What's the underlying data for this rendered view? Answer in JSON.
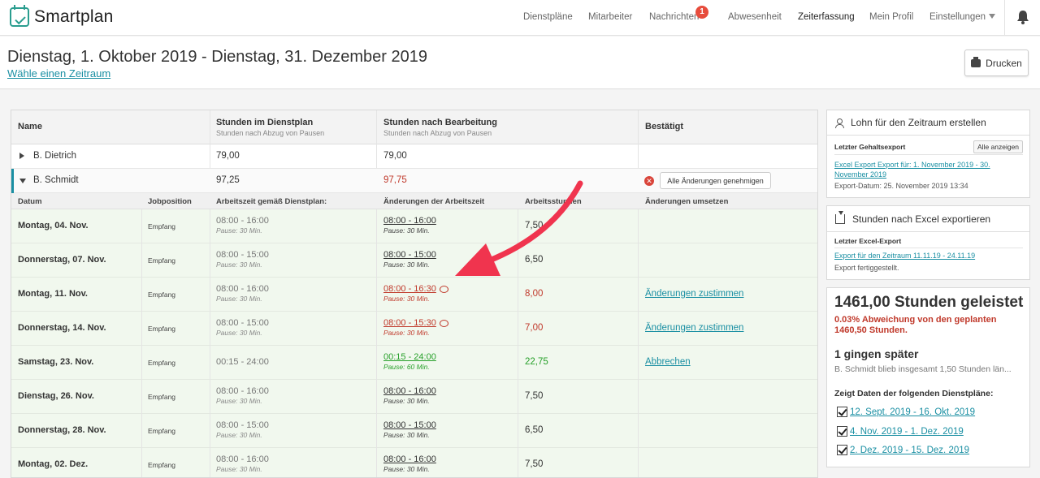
{
  "app": {
    "name": "Smartplan"
  },
  "nav": {
    "items": [
      {
        "label": "Dienstpläne"
      },
      {
        "label": "Mitarbeiter"
      },
      {
        "label": "Nachrichten",
        "badge": "1"
      },
      {
        "label": "Abwesenheit"
      },
      {
        "label": "Zeiterfassung",
        "active": true
      },
      {
        "label": "Mein Profil"
      },
      {
        "label": "Einstellungen"
      }
    ]
  },
  "header": {
    "title": "Dienstag, 1. Oktober 2019 - Dienstag, 31. Dezember 2019",
    "range_link": "Wähle einen Zeitraum",
    "print_label": "Drucken"
  },
  "table": {
    "columns": [
      {
        "label": "Name",
        "sub": ""
      },
      {
        "label": "Stunden im Dienstplan",
        "sub": "Stunden nach Abzug von Pausen"
      },
      {
        "label": "Stunden nach Bearbeitung",
        "sub": "Stunden nach Abzug von Pausen"
      },
      {
        "label": "Bestätigt",
        "sub": ""
      }
    ],
    "employees": [
      {
        "name": "B. Dietrich",
        "planned": "79,00",
        "edited": "79,00"
      },
      {
        "name": "B. Schmidt",
        "planned": "97,25",
        "edited": "97,75",
        "approve_all": "Alle Änderungen genehmigen"
      }
    ],
    "detail_columns": [
      "Datum",
      "Jobposition",
      "Arbeitszeit gemäß Dienstplan:",
      "Änderungen der Arbeitszeit",
      "Arbeitsstunden",
      "Änderungen umsetzen"
    ],
    "rows": [
      {
        "date": "Montag, 04. Nov.",
        "job": "Empfang",
        "plan": "08:00 - 16:00",
        "plan_pause": "Pause: 30 Min.",
        "change": "08:00 - 16:00",
        "change_pause": "Pause: 30 Min.",
        "hours": "7,50",
        "status": "normal",
        "action": ""
      },
      {
        "date": "Donnerstag, 07. Nov.",
        "job": "Empfang",
        "plan": "08:00 - 15:00",
        "plan_pause": "Pause: 30 Min.",
        "change": "08:00 - 15:00",
        "change_pause": "Pause: 30 Min.",
        "hours": "6,50",
        "status": "normal",
        "action": ""
      },
      {
        "date": "Montag, 11. Nov.",
        "job": "Empfang",
        "plan": "08:00 - 16:00",
        "plan_pause": "Pause: 30 Min.",
        "change": "08:00 - 16:30",
        "change_pause": "Pause: 30 Min.",
        "hours": "8,00",
        "status": "red",
        "comment": true,
        "action": "Änderungen zustimmen"
      },
      {
        "date": "Donnerstag, 14. Nov.",
        "job": "Empfang",
        "plan": "08:00 - 15:00",
        "plan_pause": "Pause: 30 Min.",
        "change": "08:00 - 15:30",
        "change_pause": "Pause: 30 Min.",
        "hours": "7,00",
        "status": "red",
        "comment": true,
        "action": "Änderungen zustimmen"
      },
      {
        "date": "Samstag, 23. Nov.",
        "job": "Empfang",
        "plan": "00:15 - 24:00",
        "plan_pause": "",
        "change": "00:15 - 24:00",
        "change_pause": "Pause: 60 Min.",
        "hours": "22,75",
        "status": "green",
        "action": "Abbrechen"
      },
      {
        "date": "Dienstag, 26. Nov.",
        "job": "Empfang",
        "plan": "08:00 - 16:00",
        "plan_pause": "Pause: 30 Min.",
        "change": "08:00 - 16:00",
        "change_pause": "Pause: 30 Min.",
        "hours": "7,50",
        "status": "normal",
        "action": ""
      },
      {
        "date": "Donnerstag, 28. Nov.",
        "job": "Empfang",
        "plan": "08:00 - 15:00",
        "plan_pause": "Pause: 30 Min.",
        "change": "08:00 - 15:00",
        "change_pause": "Pause: 30 Min.",
        "hours": "6,50",
        "status": "normal",
        "action": ""
      },
      {
        "date": "Montag, 02. Dez.",
        "job": "Empfang",
        "plan": "08:00 - 16:00",
        "plan_pause": "Pause: 30 Min.",
        "change": "08:00 - 16:00",
        "change_pause": "Pause: 30 Min.",
        "hours": "7,50",
        "status": "normal",
        "action": ""
      }
    ]
  },
  "payroll_panel": {
    "title": "Lohn für den Zeitraum erstellen",
    "sub": "Letzter Gehaltsexport",
    "show_all": "Alle anzeigen",
    "link": "Excel Export Export für: 1. November 2019 - 30. November 2019",
    "date_text": "Export-Datum: 25. November 2019 13:34"
  },
  "excel_panel": {
    "title": "Stunden nach Excel exportieren",
    "sub": "Letzter Excel-Export",
    "link": "Export für den Zeitraum 11.11.19 - 24.11.19",
    "status": "Export fertiggestellt."
  },
  "stats_panel": {
    "total": "1461,00 Stunden geleistet",
    "deviation": "0.03% Abweichung von den geplanten 1460,50 Stunden.",
    "later": "1 gingen später",
    "later_detail": "B. Schmidt blieb insgesamt 1,50 Stunden län...",
    "plans_label": "Zeigt Daten der folgenden Dienstpläne:",
    "plans": [
      {
        "label": "12. Sept. 2019 - 16. Okt. 2019"
      },
      {
        "label": "4. Nov. 2019 - 1. Dez. 2019"
      },
      {
        "label": "2. Dez. 2019 - 15. Dez. 2019"
      }
    ]
  },
  "colors": {
    "accent": "#1a8fa3",
    "red": "#c0392b",
    "green": "#27a02a",
    "arrow": "#f0344e"
  }
}
